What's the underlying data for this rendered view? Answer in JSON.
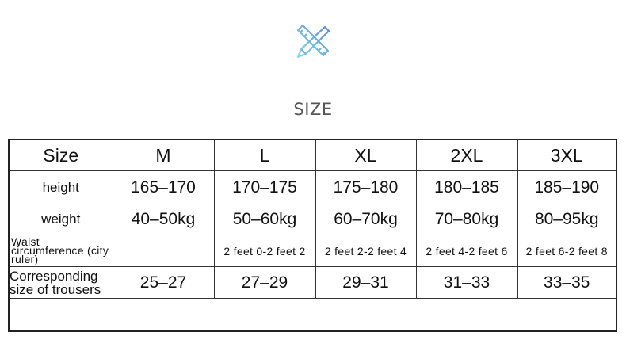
{
  "header": {
    "icon": "pencil-ruler-icon",
    "title": "SIZE",
    "icon_colors": [
      "#7fd8f0",
      "#5b8fe0"
    ]
  },
  "table": {
    "columns": [
      "Size",
      "M",
      "L",
      "XL",
      "2XL",
      "3XL"
    ],
    "rows": [
      {
        "label": "height",
        "values": [
          "165–170",
          "170–175",
          "175–180",
          "180–185",
          "185–190"
        ]
      },
      {
        "label": "weight",
        "values": [
          "40–50kg",
          "50–60kg",
          "60–70kg",
          "70–80kg",
          "80–95kg"
        ]
      },
      {
        "label": "Waist circumference (city ruler)",
        "values": [
          "",
          "2 feet 0-2 feet 2",
          "2 feet 2-2 feet 4",
          "2 feet 4-2 feet 6",
          "2 feet 6-2 feet 8"
        ]
      },
      {
        "label": "Corresponding size of trousers",
        "values": [
          "25–27",
          "27–29",
          "29–31",
          "31–33",
          "33–35"
        ]
      }
    ]
  }
}
